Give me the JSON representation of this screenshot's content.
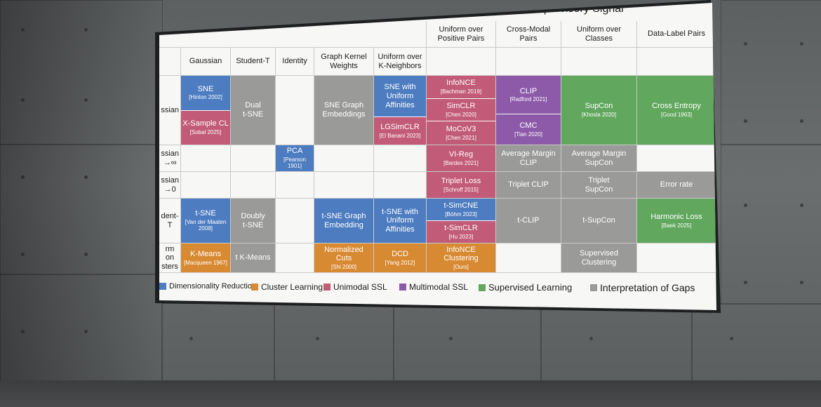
{
  "table": {
    "title": "Supervisory Signal",
    "columns": [
      "Gaussian",
      "Student-T",
      "Identity",
      "Graph Kernel Weights",
      "Uniform over K-Neighbors",
      "Uniform over Positive Pairs",
      "Cross-Modal Pairs",
      "Uniform over Classes",
      "Data-Label Pairs"
    ],
    "row_labels": [
      "ssian",
      "ssian\n→∞",
      "ssian\n→0",
      "dent-T",
      "rm on\nsters"
    ],
    "cells": [
      {
        "title": "SNE",
        "cite": "[Hinton 2002]",
        "cat": "dim"
      },
      {
        "title": "X-Sample CL",
        "cite": "[Sobal 2025]",
        "cat": "uni"
      },
      {
        "title": "Dual\nt-SNE",
        "cite": "",
        "cat": "gap"
      },
      {
        "title": "SNE Graph\nEmbeddings",
        "cite": "",
        "cat": "gap"
      },
      {
        "title": "SNE with\nUniform\nAffinities",
        "cite": "",
        "cat": "dim"
      },
      {
        "title": "LGSimCLR",
        "cite": "[El Banani 2023]",
        "cat": "uni"
      },
      {
        "title": "InfoNCE",
        "cite": "[Bachman 2019]",
        "cat": "uni"
      },
      {
        "title": "SimCLR",
        "cite": "[Chen 2020]",
        "cat": "uni"
      },
      {
        "title": "MoCoV3",
        "cite": "[Chen 2021]",
        "cat": "uni"
      },
      {
        "title": "CLIP",
        "cite": "[Radford 2021]",
        "cat": "multi"
      },
      {
        "title": "CMC",
        "cite": "[Tian 2020]",
        "cat": "multi"
      },
      {
        "title": "SupCon",
        "cite": "[Khosla 2020]",
        "cat": "sup"
      },
      {
        "title": "Cross Entropy",
        "cite": "[Good 1963]",
        "cat": "sup"
      },
      {
        "title": "PCA",
        "cite": "[Pearson 1901]",
        "cat": "dim"
      },
      {
        "title": "VI-Reg",
        "cite": "[Bardes 2021]",
        "cat": "uni"
      },
      {
        "title": "Average Margin\nCLIP",
        "cite": "",
        "cat": "gap"
      },
      {
        "title": "Average Margin\nSupCon",
        "cite": "",
        "cat": "gap"
      },
      {
        "title": "Triplet Loss",
        "cite": "[Schroff 2015]",
        "cat": "uni"
      },
      {
        "title": "Triplet CLIP",
        "cite": "",
        "cat": "gap"
      },
      {
        "title": "Triplet\nSupCon",
        "cite": "",
        "cat": "gap"
      },
      {
        "title": "Error rate",
        "cite": "",
        "cat": "gap"
      },
      {
        "title": "t-SNE",
        "cite": "[Van der Maaten\n2008]",
        "cat": "dim"
      },
      {
        "title": "Doubly\nt-SNE",
        "cite": "",
        "cat": "gap"
      },
      {
        "title": "t-SNE Graph\nEmbedding",
        "cite": "",
        "cat": "dim"
      },
      {
        "title": "t-SNE with\nUniform\nAffinities",
        "cite": "",
        "cat": "dim"
      },
      {
        "title": "t-SimCNE",
        "cite": "[Böhm 2023]",
        "cat": "dim"
      },
      {
        "title": "t-SimCLR",
        "cite": "[Hu 2023]",
        "cat": "uni"
      },
      {
        "title": "t-CLIP",
        "cite": "",
        "cat": "gap"
      },
      {
        "title": "t-SupCon",
        "cite": "",
        "cat": "gap"
      },
      {
        "title": "Harmonic Loss",
        "cite": "[Baek 2025]",
        "cat": "sup"
      },
      {
        "title": "K-Means",
        "cite": "[Macqueen 1967]",
        "cat": "clu"
      },
      {
        "title": "t K-Means",
        "cite": "",
        "cat": "gap"
      },
      {
        "title": "Normalized Cuts",
        "cite": "[Shi 2000]",
        "cat": "clu"
      },
      {
        "title": "DCD",
        "cite": "[Yang 2012]",
        "cat": "clu"
      },
      {
        "title": "InfoNCE\nClustering",
        "cite": "[Ours]",
        "cat": "clu"
      },
      {
        "title": "Supervised\nClustering",
        "cite": "",
        "cat": "gap"
      }
    ]
  },
  "legend": [
    {
      "label": "Dimensionality Reduction",
      "cat": "dim"
    },
    {
      "label": "Cluster Learning",
      "cat": "clu"
    },
    {
      "label": "Unimodal SSL",
      "cat": "uni"
    },
    {
      "label": "Multimodal SSL",
      "cat": "multi"
    },
    {
      "label": "Supervised Learning",
      "cat": "sup"
    },
    {
      "label": "Interpretation of Gaps",
      "cat": "gap"
    }
  ],
  "colors": {
    "dim": "#4d7cc0",
    "clu": "#d88a33",
    "uni": "#c25b78",
    "multi": "#8c5aa9",
    "sup": "#61a85e",
    "gap": "#9a9a98"
  }
}
